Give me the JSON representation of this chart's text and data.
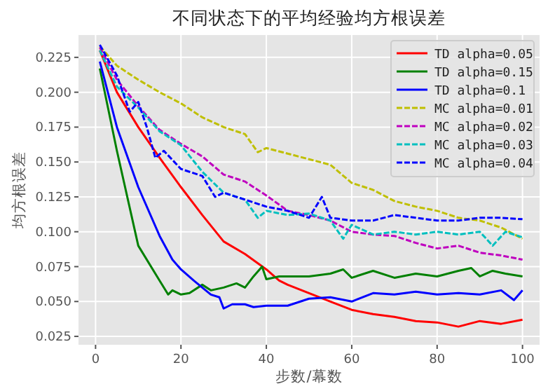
{
  "chart_data": {
    "type": "line",
    "title": "不同状态下的平均经验均方根误差",
    "xlabel": "步数/幕数",
    "ylabel": "均方根误差",
    "xlim": [
      -4,
      104
    ],
    "xticks": [
      0,
      20,
      40,
      60,
      80,
      100
    ],
    "ylim": [
      0.019,
      0.241
    ],
    "yticks": [
      {
        "value": 0.025,
        "label": "0.025"
      },
      {
        "value": 0.05,
        "label": "0.050"
      },
      {
        "value": 0.075,
        "label": "0.075"
      },
      {
        "value": 0.1,
        "label": "0.100"
      },
      {
        "value": 0.125,
        "label": "0.125"
      },
      {
        "value": 0.15,
        "label": "0.150"
      },
      {
        "value": 0.175,
        "label": "0.175"
      },
      {
        "value": 0.2,
        "label": "0.200"
      },
      {
        "value": 0.225,
        "label": "0.225"
      }
    ],
    "grid": true,
    "legend": "top right",
    "series": [
      {
        "name": "TD alpha=0.05",
        "color": "#ff0000",
        "line_style": "solid",
        "x": [
          1,
          5,
          10,
          15,
          20,
          25,
          30,
          35,
          40,
          43,
          45,
          50,
          55,
          60,
          65,
          70,
          75,
          80,
          85,
          90,
          95,
          100
        ],
        "values": [
          0.23,
          0.2,
          0.175,
          0.153,
          0.132,
          0.112,
          0.093,
          0.084,
          0.073,
          0.065,
          0.062,
          0.056,
          0.05,
          0.044,
          0.041,
          0.039,
          0.036,
          0.035,
          0.032,
          0.036,
          0.034,
          0.037
        ]
      },
      {
        "name": "TD alpha=0.15",
        "color": "#008000",
        "line_style": "solid",
        "x": [
          1,
          5,
          10,
          15,
          17,
          18,
          20,
          22,
          25,
          27,
          30,
          33,
          35,
          37,
          39,
          40,
          43,
          50,
          55,
          58,
          60,
          65,
          70,
          75,
          80,
          85,
          88,
          90,
          93,
          96,
          100
        ],
        "values": [
          0.217,
          0.158,
          0.09,
          0.065,
          0.055,
          0.058,
          0.055,
          0.056,
          0.062,
          0.058,
          0.06,
          0.063,
          0.06,
          0.068,
          0.075,
          0.066,
          0.068,
          0.068,
          0.07,
          0.073,
          0.067,
          0.072,
          0.067,
          0.07,
          0.068,
          0.072,
          0.074,
          0.068,
          0.072,
          0.07,
          0.068
        ]
      },
      {
        "name": "TD alpha=0.1",
        "color": "#0000ff",
        "line_style": "solid",
        "x": [
          1,
          5,
          10,
          15,
          18,
          20,
          23,
          25,
          27,
          29,
          30,
          32,
          35,
          37,
          40,
          45,
          50,
          55,
          60,
          65,
          70,
          75,
          80,
          85,
          90,
          95,
          98,
          100
        ],
        "values": [
          0.222,
          0.175,
          0.132,
          0.097,
          0.08,
          0.073,
          0.065,
          0.06,
          0.055,
          0.053,
          0.045,
          0.048,
          0.048,
          0.046,
          0.047,
          0.047,
          0.052,
          0.053,
          0.05,
          0.056,
          0.055,
          0.057,
          0.055,
          0.056,
          0.055,
          0.058,
          0.051,
          0.058
        ]
      },
      {
        "name": "MC alpha=0.01",
        "color": "#bfbf00",
        "line_style": "dashed",
        "x": [
          1,
          5,
          10,
          15,
          20,
          25,
          30,
          35,
          38,
          40,
          45,
          50,
          55,
          60,
          65,
          70,
          75,
          80,
          85,
          90,
          95,
          100
        ],
        "values": [
          0.233,
          0.219,
          0.209,
          0.2,
          0.192,
          0.182,
          0.175,
          0.17,
          0.157,
          0.16,
          0.156,
          0.152,
          0.148,
          0.135,
          0.13,
          0.122,
          0.118,
          0.115,
          0.11,
          0.108,
          0.103,
          0.095
        ]
      },
      {
        "name": "MC alpha=0.02",
        "color": "#bf00bf",
        "line_style": "dashed",
        "x": [
          1,
          5,
          10,
          15,
          20,
          25,
          30,
          35,
          40,
          45,
          50,
          55,
          60,
          65,
          70,
          75,
          80,
          85,
          90,
          95,
          100
        ],
        "values": [
          0.232,
          0.209,
          0.19,
          0.173,
          0.163,
          0.154,
          0.141,
          0.136,
          0.126,
          0.115,
          0.112,
          0.108,
          0.1,
          0.098,
          0.097,
          0.092,
          0.088,
          0.09,
          0.085,
          0.083,
          0.08
        ]
      },
      {
        "name": "MC alpha=0.03",
        "color": "#00bfbf",
        "line_style": "dashed",
        "x": [
          1,
          5,
          10,
          15,
          20,
          25,
          30,
          35,
          38,
          40,
          45,
          50,
          55,
          58,
          60,
          65,
          70,
          75,
          80,
          85,
          90,
          93,
          96,
          100
        ],
        "values": [
          0.23,
          0.204,
          0.189,
          0.172,
          0.162,
          0.143,
          0.128,
          0.123,
          0.11,
          0.115,
          0.112,
          0.113,
          0.108,
          0.095,
          0.105,
          0.098,
          0.1,
          0.098,
          0.1,
          0.098,
          0.1,
          0.09,
          0.1,
          0.096
        ]
      },
      {
        "name": "MC alpha=0.04",
        "color": "#0000ff",
        "line_style": "dashed",
        "x": [
          1,
          5,
          8,
          10,
          12,
          14,
          16,
          20,
          25,
          28,
          30,
          35,
          40,
          45,
          50,
          53,
          55,
          60,
          65,
          70,
          75,
          80,
          85,
          90,
          95,
          100
        ],
        "values": [
          0.234,
          0.212,
          0.186,
          0.193,
          0.175,
          0.153,
          0.158,
          0.145,
          0.14,
          0.125,
          0.128,
          0.123,
          0.118,
          0.115,
          0.11,
          0.125,
          0.11,
          0.108,
          0.108,
          0.112,
          0.11,
          0.108,
          0.108,
          0.11,
          0.11,
          0.109
        ]
      }
    ]
  }
}
